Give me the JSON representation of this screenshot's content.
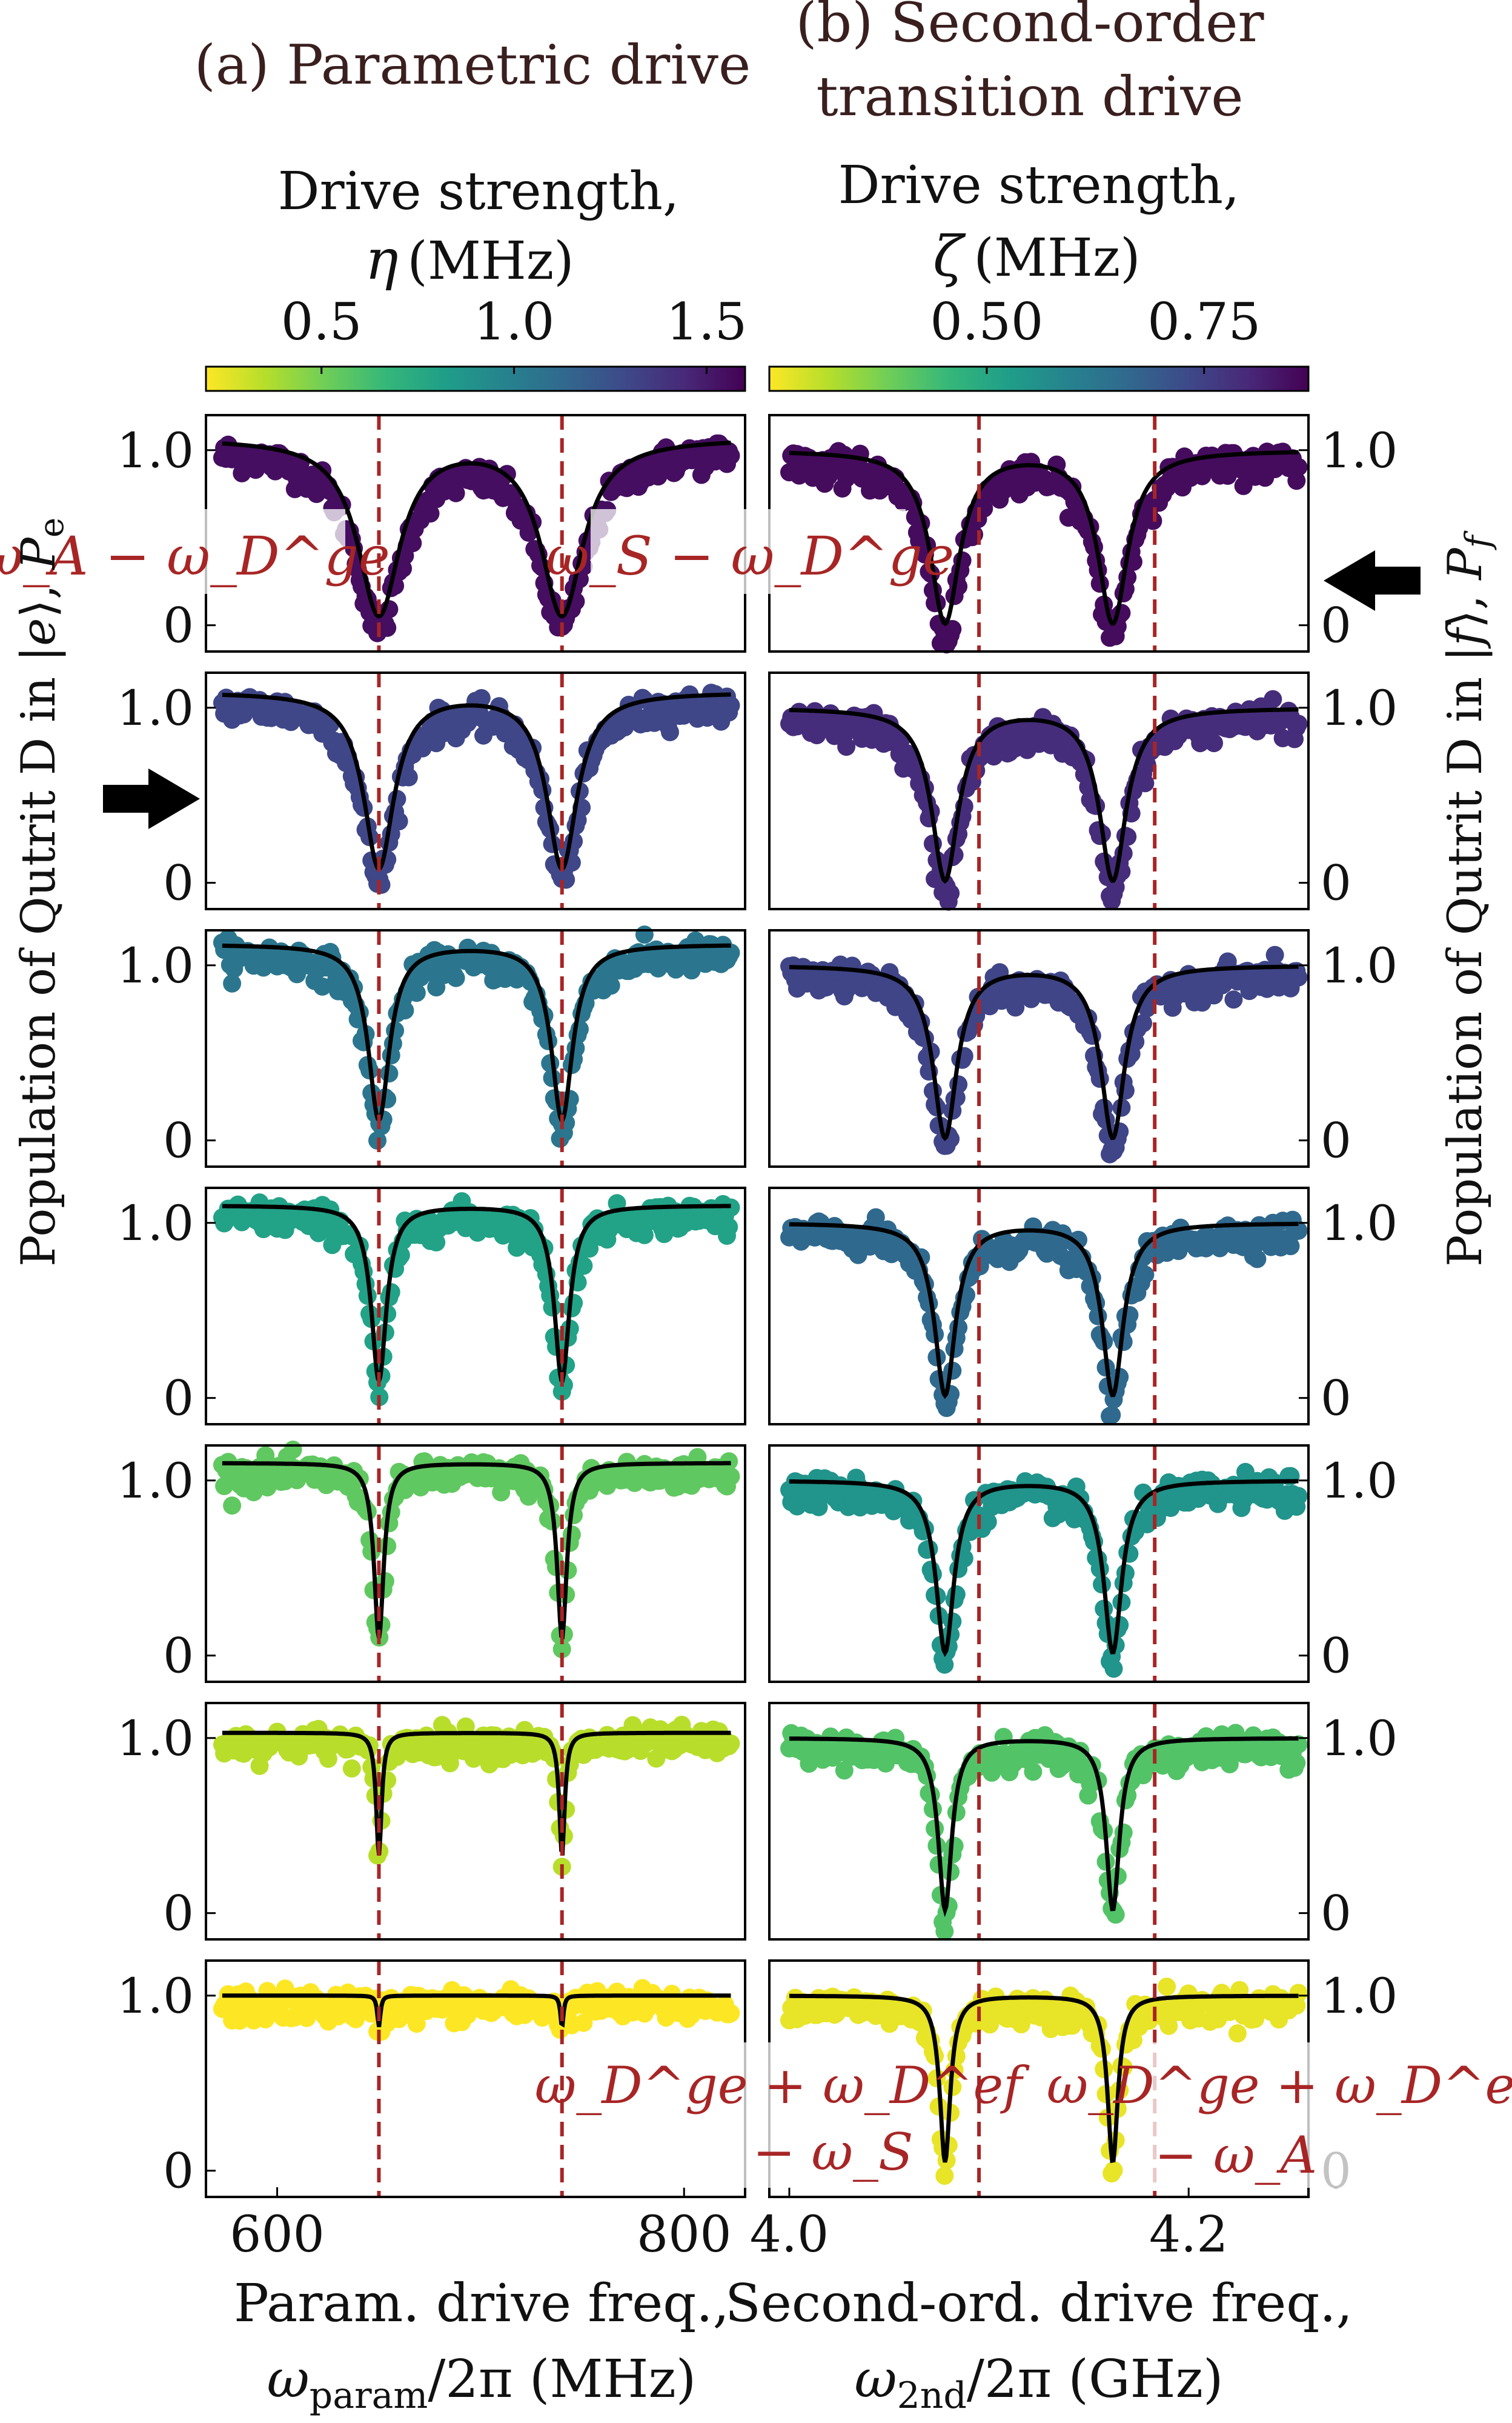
{
  "panels": {
    "a": {
      "title": "(a) Parametric drive",
      "colorbar_label_line1": "Drive strength,",
      "colorbar_label_symbol": "η",
      "colorbar_label_unit": "(MHz)",
      "colorbar_ticks": [
        "0.5",
        "1.0",
        "1.5"
      ],
      "colorbar_range": [
        0.2,
        1.6
      ],
      "xlabel_line1": "Param. drive freq.,",
      "xlabel_line2_symbol": "ω",
      "xlabel_line2_sub": "param",
      "xlabel_line2_rest": "/2π (MHz)",
      "ylabel_prefix": "Population of Qutrit D in |",
      "ylabel_state": "e",
      "ylabel_suffix": "⟩, ",
      "ylabel_symbol": "P",
      "ylabel_sub": "e",
      "xticks": [
        "600",
        "800"
      ]
    },
    "b": {
      "title_line1": "(b) Second-order",
      "title_line2": "transition drive",
      "colorbar_label_line1": "Drive strength,",
      "colorbar_label_symbol": "ζ",
      "colorbar_label_unit": "(MHz)",
      "colorbar_ticks": [
        "0.50",
        "0.75"
      ],
      "colorbar_range": [
        0.25,
        0.87
      ],
      "xlabel_line1": "Second-ord. drive freq.,",
      "xlabel_line2_symbol": "ω",
      "xlabel_line2_sub": "2nd",
      "xlabel_line2_rest": "/2π (GHz)",
      "ylabel_prefix": "Population of Qutrit D in |",
      "ylabel_state": "f",
      "ylabel_suffix": "⟩, ",
      "ylabel_symbol": "P",
      "ylabel_sub": "f",
      "xticks": [
        "4.0",
        "4.2"
      ]
    }
  },
  "yticks": [
    "0",
    "1.0"
  ],
  "annotations": {
    "a_left": "ω_A − ω_D^ge",
    "a_right": "ω_S − ω_D^ge",
    "b_left_line1": "ω_D^ge + ω_D^ef",
    "b_left_line2": "− ω_S",
    "b_right_line1": "ω_D^ge + ω_D^ef",
    "b_right_line2": "− ω_A"
  },
  "colors": {
    "annotation": "#a82525",
    "dashed_line": "#a82525",
    "fit_line": "#000000",
    "colormap": [
      "#fde725",
      "#b5de2b",
      "#6ece58",
      "#35b779",
      "#1f9e89",
      "#26828e",
      "#31688e",
      "#3e4989",
      "#482878",
      "#440154"
    ]
  },
  "chart_data": [
    {
      "type": "scatter",
      "panel": "a",
      "xlim": [
        565,
        830
      ],
      "ylim": [
        -0.15,
        1.2
      ],
      "dashed_x": [
        650,
        740
      ],
      "series": [
        {
          "drive_strength": 1.55,
          "dip_width": 14,
          "dip_depth": 1.0,
          "baseline": 1.07
        },
        {
          "drive_strength": 1.3,
          "dip_width": 10,
          "dip_depth": 1.0,
          "baseline": 1.09
        },
        {
          "drive_strength": 1.05,
          "dip_width": 7,
          "dip_depth": 1.0,
          "baseline": 1.12
        },
        {
          "drive_strength": 0.8,
          "dip_width": 5,
          "dip_depth": 1.0,
          "baseline": 1.1
        },
        {
          "drive_strength": 0.55,
          "dip_width": 3.2,
          "dip_depth": 1.0,
          "baseline": 1.1
        },
        {
          "drive_strength": 0.35,
          "dip_width": 1.8,
          "dip_depth": 0.7,
          "baseline": 1.03
        },
        {
          "drive_strength": 0.2,
          "dip_width": 1.0,
          "dip_depth": 0.18,
          "baseline": 1.0
        }
      ]
    },
    {
      "type": "scatter",
      "panel": "b",
      "xlim": [
        3.99,
        4.26
      ],
      "ylim": [
        -0.15,
        1.2
      ],
      "dashed_x": [
        4.095,
        4.183
      ],
      "dips_x": [
        4.078,
        4.162
      ],
      "series": [
        {
          "drive_strength": 0.85,
          "dip_width": 0.01,
          "dip_depth": 0.98,
          "baseline": 1.0
        },
        {
          "drive_strength": 0.79,
          "dip_width": 0.009,
          "dip_depth": 0.98,
          "baseline": 1.0
        },
        {
          "drive_strength": 0.74,
          "dip_width": 0.008,
          "dip_depth": 0.98,
          "baseline": 1.0
        },
        {
          "drive_strength": 0.66,
          "dip_width": 0.007,
          "dip_depth": 0.98,
          "baseline": 1.0
        },
        {
          "drive_strength": 0.55,
          "dip_width": 0.006,
          "dip_depth": 0.98,
          "baseline": 1.0
        },
        {
          "drive_strength": 0.42,
          "dip_width": 0.0045,
          "dip_depth": 0.98,
          "baseline": 1.0
        },
        {
          "drive_strength": 0.27,
          "dip_width": 0.0035,
          "dip_depth": 0.95,
          "baseline": 1.0
        }
      ]
    }
  ]
}
